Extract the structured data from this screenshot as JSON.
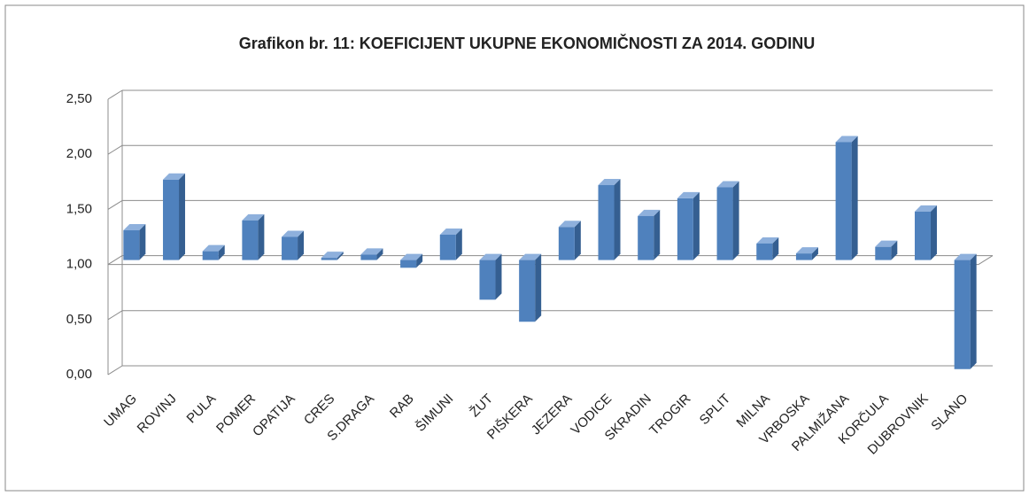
{
  "chart_data": {
    "type": "bar3d",
    "title": "Grafikon br. 11: KOEFICIJENT UKUPNE EKONOMIČNOSTI ZA 2014. GODINU",
    "categories": [
      "UMAG",
      "ROVINJ",
      "PULA",
      "POMER",
      "OPATIJA",
      "CRES",
      "S.DRAGA",
      "RAB",
      "ŠIMUNI",
      "ŽUT",
      "PIŠKERA",
      "JEZERA",
      "VODICE",
      "SKRADIN",
      "TROGIR",
      "SPLIT",
      "MILNA",
      "VRBOSKA",
      "PALMIŽANA",
      "KORČULA",
      "DUBROVNIK",
      "SLANO"
    ],
    "values": [
      1.27,
      1.73,
      1.08,
      1.36,
      1.21,
      1.02,
      1.05,
      0.93,
      1.23,
      0.64,
      0.44,
      1.3,
      1.68,
      1.4,
      1.56,
      1.66,
      1.15,
      1.06,
      2.07,
      1.12,
      1.44,
      0.01
    ],
    "color": "#4f81bd",
    "axis_crossing": 1,
    "ylim": [
      0,
      2.5
    ],
    "yticks": [
      {
        "value": 0,
        "label": "0,00"
      },
      {
        "value": 0.5,
        "label": "0,50"
      },
      {
        "value": 1,
        "label": "1,00"
      },
      {
        "value": 1.5,
        "label": "1,50"
      },
      {
        "value": 2,
        "label": "2,00"
      },
      {
        "value": 2.5,
        "label": "2,50"
      }
    ],
    "grid": true
  }
}
